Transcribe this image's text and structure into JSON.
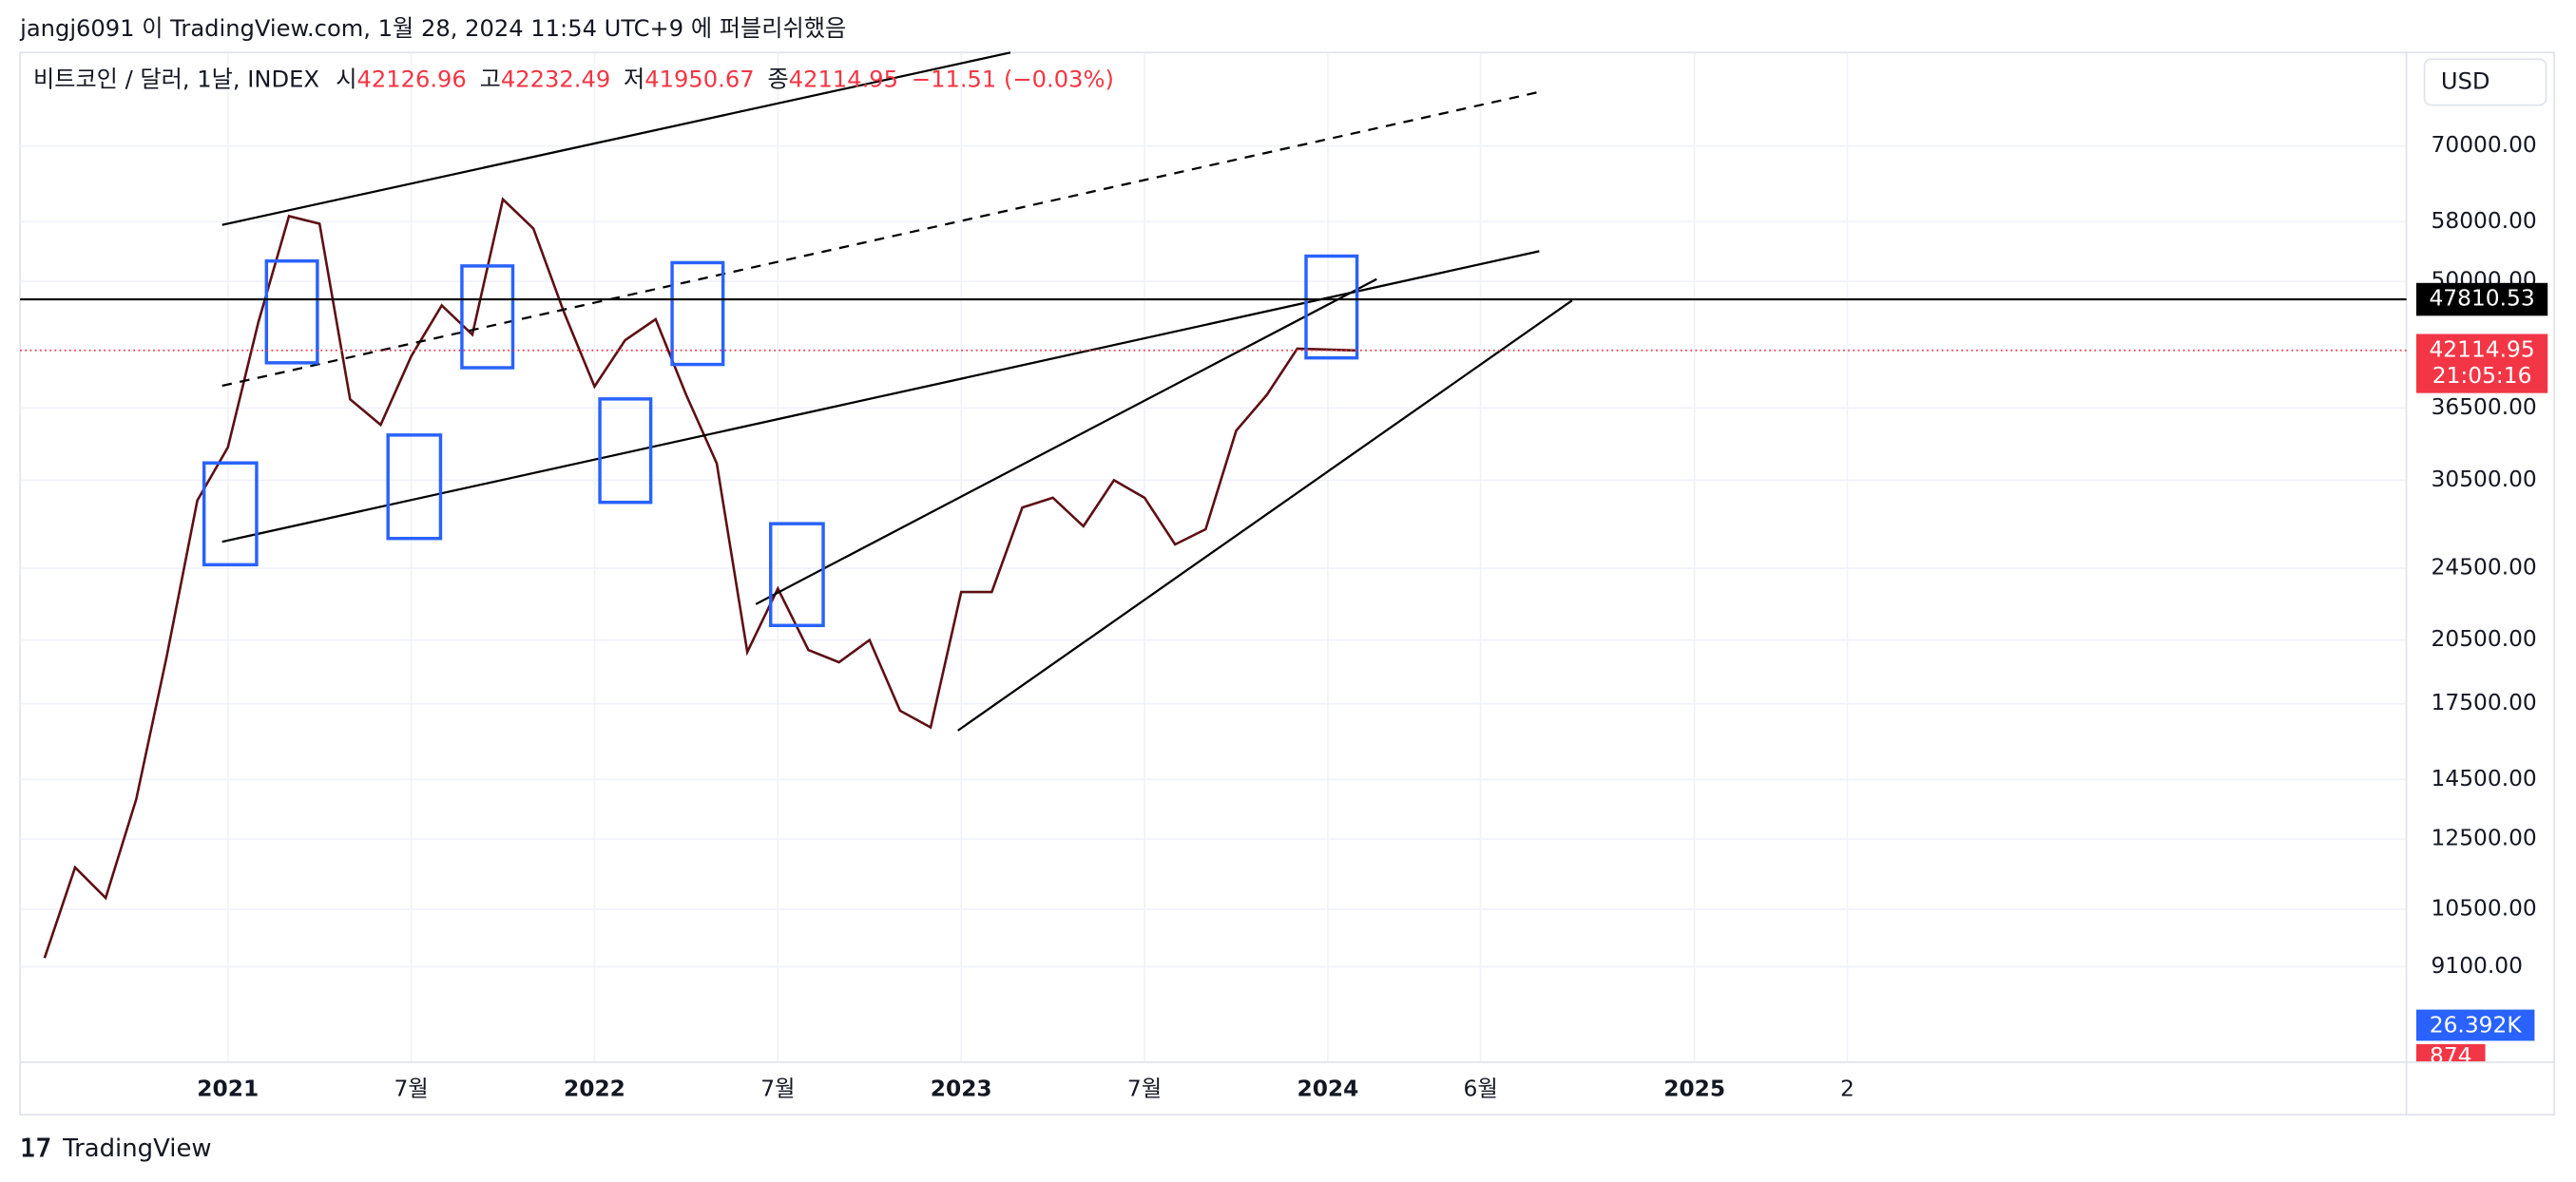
{
  "header": "jangj6091 이 TradingView.com, 1월 28, 2024 11:54 UTC+9 에 퍼블리쉬했음",
  "legend": {
    "symbol": "비트코인 / 달러, 1날, INDEX",
    "open_label": "시",
    "open": 42126.96,
    "high_label": "고",
    "high": 42232.49,
    "low_label": "저",
    "low": 41950.67,
    "close_label": "종",
    "close": 42114.95,
    "change": "−11.51 (−0.03%)"
  },
  "currency": "USD",
  "footer": "TradingView",
  "chart_data": {
    "type": "line",
    "log_scale": true,
    "grid": true,
    "x": [
      6,
      7,
      8,
      9,
      10,
      11,
      12,
      13,
      14,
      15,
      16,
      17,
      18,
      19,
      20,
      21,
      22,
      23,
      24,
      25,
      26,
      27,
      28,
      29,
      30,
      31,
      32,
      33,
      34,
      35,
      36,
      37,
      38,
      39,
      40,
      41,
      42,
      43,
      44,
      45,
      46,
      47,
      48.9
    ],
    "series": [
      {
        "name": "비트코인 / 달러, 1날, INDEX",
        "color": "#5d0f14",
        "values": [
          9300,
          11650,
          10800,
          13800,
          19700,
          29000,
          33100,
          45200,
          58800,
          57700,
          37300,
          35000,
          41500,
          47100,
          43800,
          61300,
          57000,
          46300,
          38500,
          43200,
          45500,
          37700,
          31800,
          19900,
          23300,
          20000,
          19400,
          20500,
          17200,
          16500,
          23100,
          23100,
          28500,
          29200,
          27200,
          30500,
          29200,
          26000,
          27000,
          34500,
          37700,
          42300,
          42114.95
        ]
      }
    ],
    "xlim": [
      5.2,
      83.3
    ],
    "xticks": [
      {
        "value": 12,
        "label": "2021"
      },
      {
        "value": 18,
        "label": "7월"
      },
      {
        "value": 24,
        "label": "2022"
      },
      {
        "value": 30,
        "label": "7월"
      },
      {
        "value": 36,
        "label": "2023"
      },
      {
        "value": 42,
        "label": "7월"
      },
      {
        "value": 48,
        "label": "2024"
      },
      {
        "value": 53,
        "label": "6월"
      },
      {
        "value": 60,
        "label": "2025"
      },
      {
        "value": 65,
        "label": "2"
      }
    ],
    "ylim": [
      7180,
      88300
    ],
    "yticks": [
      {
        "value": 70000,
        "label": "70000.00"
      },
      {
        "value": 58000,
        "label": "58000.00"
      },
      {
        "value": 50000,
        "label": "50000.00"
      },
      {
        "value": 36500,
        "label": "36500.00"
      },
      {
        "value": 30500,
        "label": "30500.00"
      },
      {
        "value": 24500,
        "label": "24500.00"
      },
      {
        "value": 20500,
        "label": "20500.00"
      },
      {
        "value": 17500,
        "label": "17500.00"
      },
      {
        "value": 14500,
        "label": "14500.00"
      },
      {
        "value": 12500,
        "label": "12500.00"
      },
      {
        "value": 10500,
        "label": "10500.00"
      },
      {
        "value": 9100,
        "label": "9100.00"
      }
    ],
    "hline": 47810.53,
    "last_price": 42114.95,
    "countdown": "21:05:16",
    "volume_ma_label": "26.392K",
    "volume_label": "874"
  }
}
